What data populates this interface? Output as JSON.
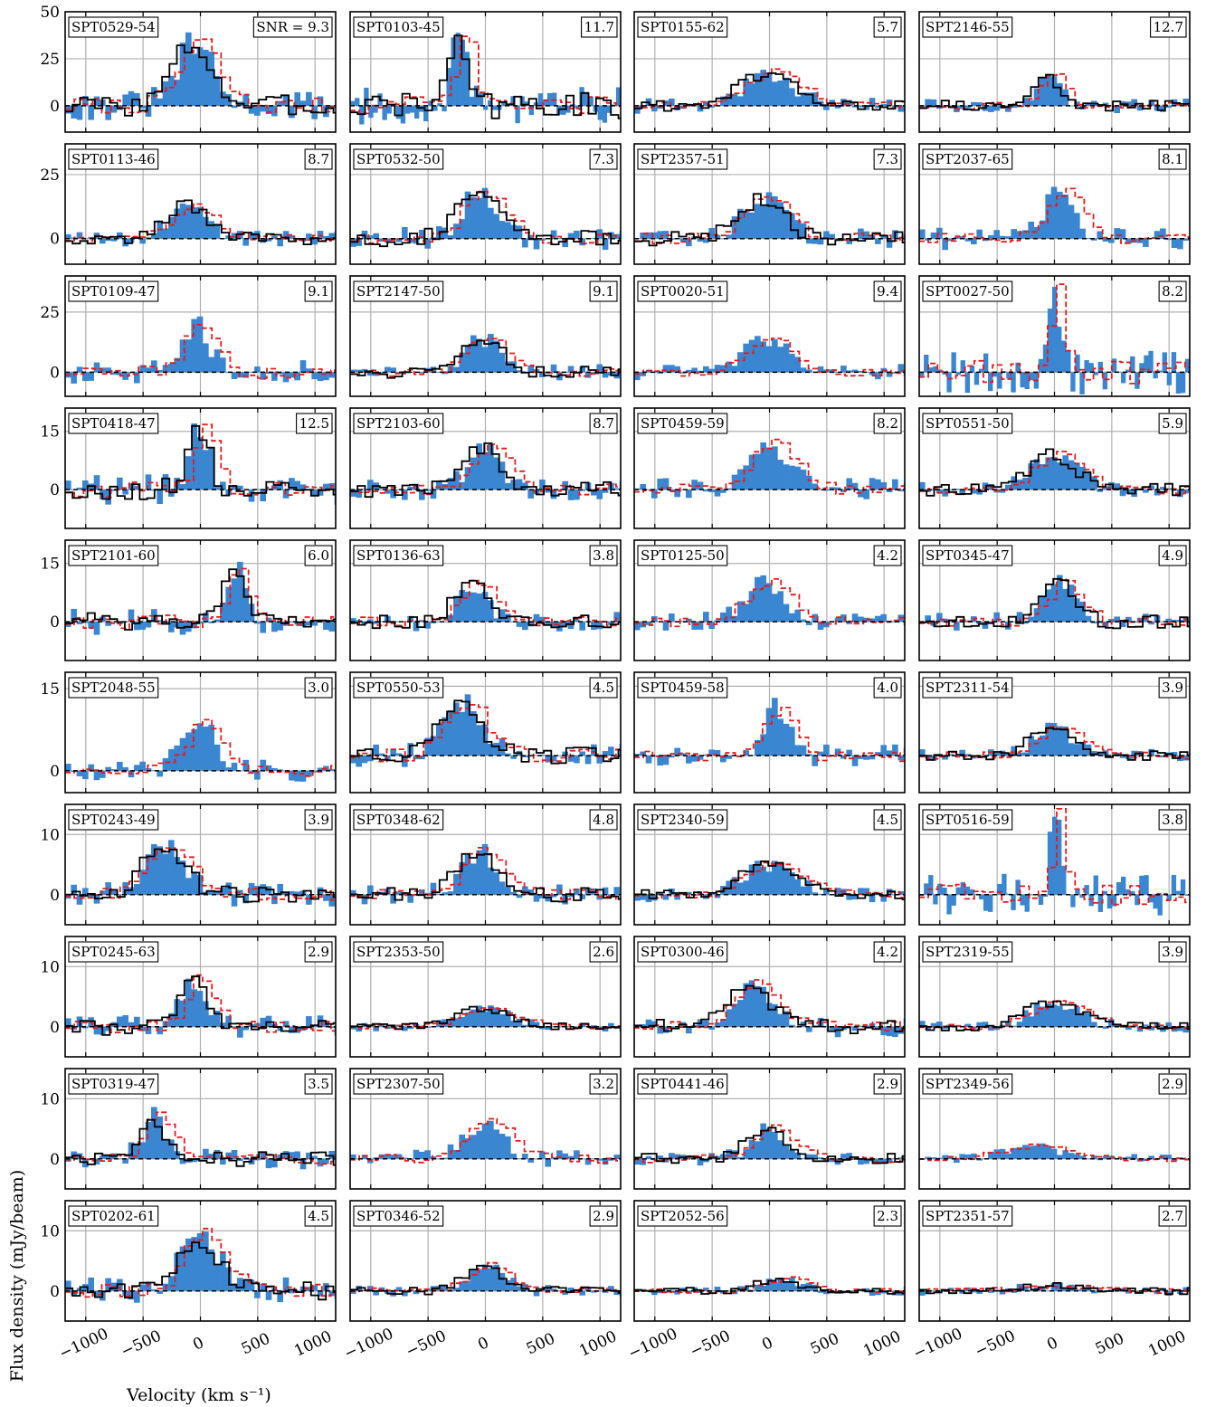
{
  "figure": {
    "ylabel": "Flux density (mJy/beam)",
    "xlabel": "Velocity (km s⁻¹)",
    "x_ticks": [
      -1000,
      -500,
      0,
      500,
      1000
    ],
    "x_tick_labels": [
      "−1000",
      "−500",
      "0",
      "500",
      "1000"
    ],
    "colors": {
      "histogram": "#3b86d1",
      "black_line": "#000000",
      "red_line": "#e41a1c",
      "grid": "#b0b0b0",
      "zero_line": "#000000"
    }
  },
  "chart_data": {
    "type": "bar",
    "xlim": [
      -1180,
      1180
    ],
    "panels": [
      {
        "name": "SPT0529-54",
        "snr": "SNR = 9.3",
        "ylim": [
          -14,
          50
        ],
        "yticks": [
          0,
          25,
          50
        ],
        "peak": 33,
        "center": -50,
        "width": 280,
        "black": true,
        "red": true
      },
      {
        "name": "SPT0103-45",
        "snr": "11.7",
        "ylim": [
          -14,
          50
        ],
        "yticks": [],
        "peak": 40,
        "center": -220,
        "width": 120,
        "black": true,
        "red": true
      },
      {
        "name": "SPT0155-62",
        "snr": "5.7",
        "ylim": [
          -14,
          50
        ],
        "yticks": [],
        "peak": 17,
        "center": 0,
        "width": 400,
        "black": true,
        "red": true
      },
      {
        "name": "SPT2146-55",
        "snr": "12.7",
        "ylim": [
          -14,
          50
        ],
        "yticks": [],
        "peak": 16,
        "center": -50,
        "width": 180,
        "black": true,
        "red": true
      },
      {
        "name": "SPT0113-46",
        "snr": "8.7",
        "ylim": [
          -10,
          37
        ],
        "yticks": [
          0,
          25
        ],
        "peak": 13,
        "center": -100,
        "width": 300,
        "black": true,
        "red": true
      },
      {
        "name": "SPT0532-50",
        "snr": "7.3",
        "ylim": [
          -10,
          37
        ],
        "yticks": [],
        "peak": 18,
        "center": -50,
        "width": 300,
        "black": true,
        "red": true
      },
      {
        "name": "SPT2357-51",
        "snr": "7.3",
        "ylim": [
          -10,
          37
        ],
        "yticks": [],
        "peak": 16,
        "center": -50,
        "width": 320,
        "black": true,
        "red": true
      },
      {
        "name": "SPT2037-65",
        "snr": "8.1",
        "ylim": [
          -10,
          37
        ],
        "yticks": [],
        "peak": 18,
        "center": 50,
        "width": 260,
        "black": false,
        "red": true
      },
      {
        "name": "SPT0109-47",
        "snr": "9.1",
        "ylim": [
          -10,
          40
        ],
        "yticks": [
          0,
          25
        ],
        "peak": 20,
        "center": -50,
        "width": 220,
        "black": false,
        "red": true
      },
      {
        "name": "SPT2147-50",
        "snr": "9.1",
        "ylim": [
          -10,
          40
        ],
        "yticks": [],
        "peak": 14,
        "center": -20,
        "width": 300,
        "black": true,
        "red": true
      },
      {
        "name": "SPT0020-51",
        "snr": "9.4",
        "ylim": [
          -10,
          40
        ],
        "yticks": [],
        "peak": 14,
        "center": -30,
        "width": 320,
        "black": false,
        "red": true
      },
      {
        "name": "SPT0027-50",
        "snr": "8.2",
        "ylim": [
          -10,
          40
        ],
        "yticks": [],
        "peak": 38,
        "center": -20,
        "width": 90,
        "black": false,
        "red": true
      },
      {
        "name": "SPT0418-47",
        "snr": "12.5",
        "ylim": [
          -10,
          21
        ],
        "yticks": [
          0,
          15
        ],
        "peak": 16,
        "center": 0,
        "width": 160,
        "black": true,
        "red": true
      },
      {
        "name": "SPT2103-60",
        "snr": "8.7",
        "ylim": [
          -10,
          21
        ],
        "yticks": [],
        "peak": 11,
        "center": 0,
        "width": 260,
        "black": true,
        "red": true
      },
      {
        "name": "SPT0459-59",
        "snr": "8.2",
        "ylim": [
          -10,
          21
        ],
        "yticks": [],
        "peak": 12,
        "center": 0,
        "width": 320,
        "black": false,
        "red": true
      },
      {
        "name": "SPT0551-50",
        "snr": "5.9",
        "ylim": [
          -10,
          21
        ],
        "yticks": [],
        "peak": 9,
        "center": 0,
        "width": 340,
        "black": true,
        "red": true
      },
      {
        "name": "SPT2101-60",
        "snr": "6.0",
        "ylim": [
          -10,
          21
        ],
        "yticks": [
          0,
          15
        ],
        "peak": 14,
        "center": 300,
        "width": 150,
        "black": true,
        "red": true
      },
      {
        "name": "SPT0136-63",
        "snr": "3.8",
        "ylim": [
          -10,
          21
        ],
        "yticks": [],
        "peak": 10,
        "center": -100,
        "width": 240,
        "black": true,
        "red": true
      },
      {
        "name": "SPT0125-50",
        "snr": "4.2",
        "ylim": [
          -10,
          21
        ],
        "yticks": [],
        "peak": 10,
        "center": -50,
        "width": 320,
        "black": false,
        "red": true
      },
      {
        "name": "SPT0345-47",
        "snr": "4.9",
        "ylim": [
          -10,
          21
        ],
        "yticks": [],
        "peak": 10,
        "center": 50,
        "width": 240,
        "black": true,
        "red": true
      },
      {
        "name": "SPT2048-55",
        "snr": "3.0",
        "ylim": [
          -4,
          18
        ],
        "yticks": [
          0,
          15
        ],
        "peak": 8,
        "center": 0,
        "width": 280,
        "black": false,
        "red": true
      },
      {
        "name": "SPT0550-53",
        "snr": "4.5",
        "ylim": [
          -8,
          18
        ],
        "yticks": [],
        "peak": 11,
        "center": -200,
        "width": 300,
        "black": true,
        "red": true
      },
      {
        "name": "SPT0459-58",
        "snr": "4.0",
        "ylim": [
          -8,
          18
        ],
        "yticks": [],
        "peak": 10,
        "center": 50,
        "width": 200,
        "black": false,
        "red": true
      },
      {
        "name": "SPT2311-54",
        "snr": "3.9",
        "ylim": [
          -8,
          18
        ],
        "yticks": [],
        "peak": 6,
        "center": 0,
        "width": 300,
        "black": true,
        "red": true
      },
      {
        "name": "SPT0243-49",
        "snr": "3.9",
        "ylim": [
          -5,
          15
        ],
        "yticks": [
          0,
          10
        ],
        "peak": 8,
        "center": -300,
        "width": 300,
        "black": true,
        "red": true
      },
      {
        "name": "SPT0348-62",
        "snr": "4.8",
        "ylim": [
          -5,
          15
        ],
        "yticks": [],
        "peak": 7,
        "center": -50,
        "width": 300,
        "black": true,
        "red": true
      },
      {
        "name": "SPT2340-59",
        "snr": "4.5",
        "ylim": [
          -5,
          15
        ],
        "yticks": [],
        "peak": 5,
        "center": 0,
        "width": 400,
        "black": true,
        "red": true
      },
      {
        "name": "SPT0516-59",
        "snr": "3.8",
        "ylim": [
          -5,
          15
        ],
        "yticks": [],
        "peak": 14,
        "center": 0,
        "width": 80,
        "black": false,
        "red": true
      },
      {
        "name": "SPT0245-63",
        "snr": "2.9",
        "ylim": [
          -5,
          15
        ],
        "yticks": [
          0,
          10
        ],
        "peak": 8,
        "center": -50,
        "width": 200,
        "black": true,
        "red": true
      },
      {
        "name": "SPT2353-50",
        "snr": "2.6",
        "ylim": [
          -5,
          15
        ],
        "yticks": [],
        "peak": 3,
        "center": 0,
        "width": 400,
        "black": true,
        "red": true
      },
      {
        "name": "SPT0300-46",
        "snr": "4.2",
        "ylim": [
          -5,
          15
        ],
        "yticks": [],
        "peak": 7,
        "center": -150,
        "width": 300,
        "black": true,
        "red": true
      },
      {
        "name": "SPT2319-55",
        "snr": "3.9",
        "ylim": [
          -5,
          15
        ],
        "yticks": [],
        "peak": 4,
        "center": 0,
        "width": 400,
        "black": true,
        "red": true
      },
      {
        "name": "SPT0319-47",
        "snr": "3.5",
        "ylim": [
          -5,
          15
        ],
        "yticks": [
          0,
          10
        ],
        "peak": 7,
        "center": -400,
        "width": 200,
        "black": true,
        "red": true
      },
      {
        "name": "SPT2307-50",
        "snr": "3.2",
        "ylim": [
          -5,
          15
        ],
        "yticks": [],
        "peak": 6,
        "center": 0,
        "width": 320,
        "black": false,
        "red": true
      },
      {
        "name": "SPT0441-46",
        "snr": "2.9",
        "ylim": [
          -5,
          15
        ],
        "yticks": [],
        "peak": 5,
        "center": 0,
        "width": 300,
        "black": true,
        "red": true
      },
      {
        "name": "SPT2349-56",
        "snr": "2.9",
        "ylim": [
          -5,
          15
        ],
        "yticks": [],
        "peak": 2,
        "center": -200,
        "width": 500,
        "black": false,
        "red": true
      },
      {
        "name": "SPT0202-61",
        "snr": "4.5",
        "ylim": [
          -5,
          15
        ],
        "yticks": [
          0,
          10
        ],
        "peak": 9,
        "center": 0,
        "width": 300,
        "black": true,
        "red": true
      },
      {
        "name": "SPT0346-52",
        "snr": "2.9",
        "ylim": [
          -5,
          15
        ],
        "yticks": [],
        "peak": 4,
        "center": 0,
        "width": 300,
        "black": true,
        "red": true
      },
      {
        "name": "SPT2052-56",
        "snr": "2.3",
        "ylim": [
          -5,
          15
        ],
        "yticks": [],
        "peak": 2,
        "center": 100,
        "width": 300,
        "black": true,
        "red": true
      },
      {
        "name": "SPT2351-57",
        "snr": "2.7",
        "ylim": [
          -5,
          15
        ],
        "yticks": [],
        "peak": 0.8,
        "center": 0,
        "width": 500,
        "black": true,
        "red": true
      }
    ]
  }
}
